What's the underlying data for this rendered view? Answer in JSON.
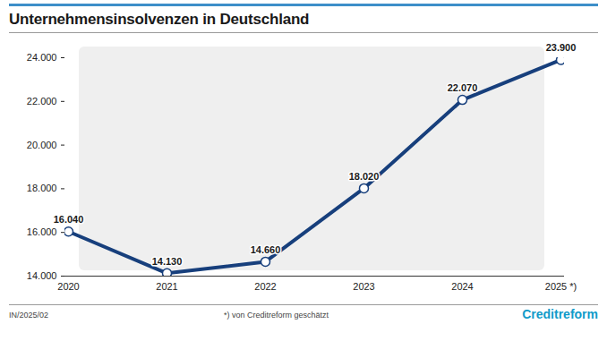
{
  "chart_data": {
    "type": "line",
    "title": "Unternehmensinsolvenzen in Deutschland",
    "categories": [
      "2020",
      "2021",
      "2022",
      "2023",
      "2024",
      "2025 *)"
    ],
    "values": [
      16040,
      14130,
      14660,
      18020,
      22070,
      23900
    ],
    "value_labels": [
      "16.040",
      "14.130",
      "14.660",
      "18.020",
      "22.070",
      "23.900"
    ],
    "data_labels": true,
    "color": "#173f7c",
    "marker": "circle",
    "ylim": [
      14000,
      24000
    ],
    "yticks": [
      {
        "value": 14000,
        "label": "14.000"
      },
      {
        "value": 16000,
        "label": "16.000"
      },
      {
        "value": 18000,
        "label": "18.000"
      },
      {
        "value": 20000,
        "label": "20.000"
      },
      {
        "value": 22000,
        "label": "22.000"
      },
      {
        "value": 24000,
        "label": "24.000"
      }
    ],
    "grid": false,
    "annotations": [
      "IN/2025/02",
      "*) von Creditreform geschätzt",
      "Creditreform"
    ]
  }
}
